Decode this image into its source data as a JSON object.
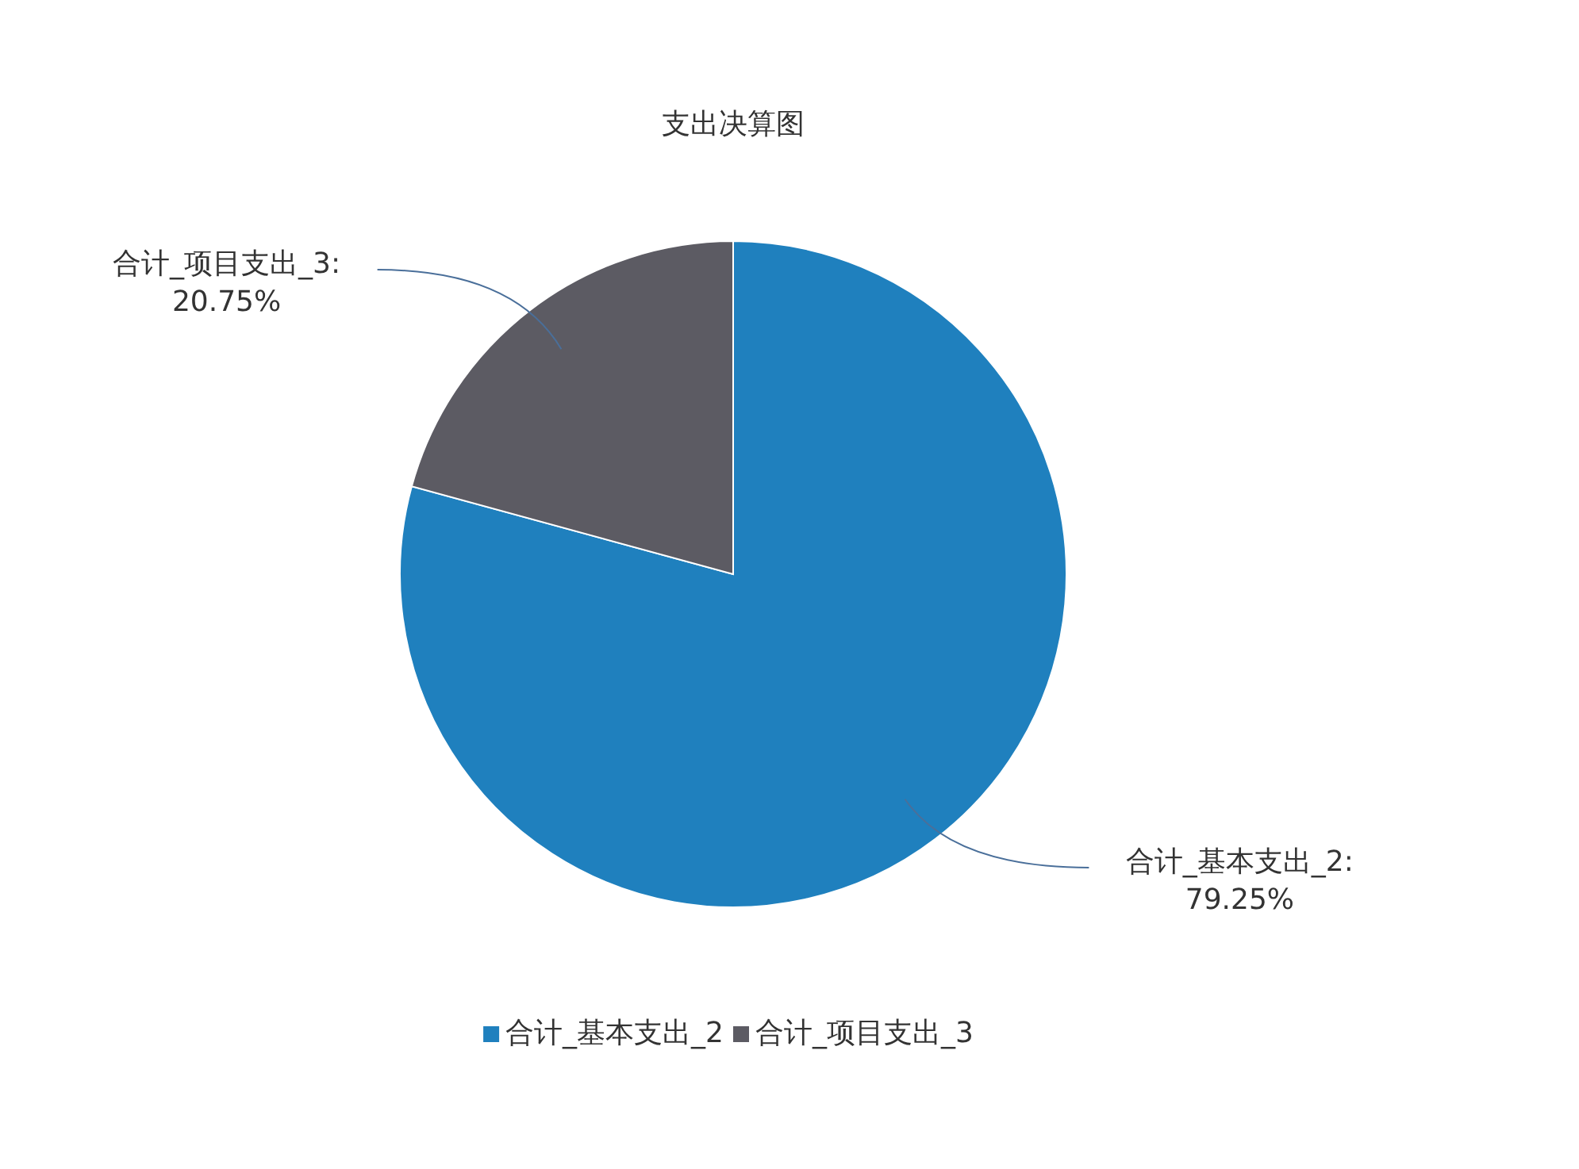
{
  "chart_data": {
    "type": "pie",
    "title": "支出决算图",
    "categories": [
      "合计_基本支出_2",
      "合计_项目支出_3"
    ],
    "values": [
      79.25,
      20.75
    ],
    "colors": [
      "#1f80be",
      "#5c5b63"
    ],
    "value_labels": [
      "合计_基本支出_2:\n79.25%",
      "合计_项目支出_3:\n20.75%"
    ],
    "legend": "bottom"
  }
}
